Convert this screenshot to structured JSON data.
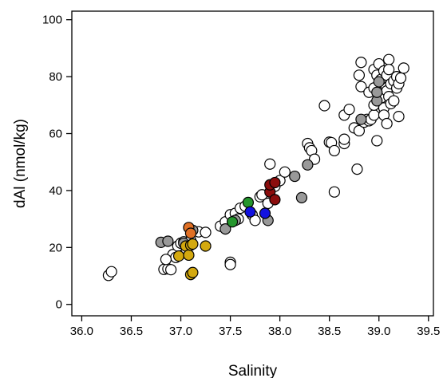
{
  "chart_data": {
    "type": "scatter",
    "title": "",
    "xlabel": "Salinity",
    "ylabel": "dAl (nmol/kg)",
    "xlim": [
      35.9,
      39.55
    ],
    "ylim": [
      -4,
      103
    ],
    "xticks": [
      36.0,
      36.5,
      37.0,
      37.5,
      38.0,
      38.5,
      39.0,
      39.5
    ],
    "xtick_labels": [
      "36.0",
      "36.5",
      "37.0",
      "37.5",
      "38.0",
      "38.5",
      "39.0",
      "39.5"
    ],
    "yticks": [
      0,
      20,
      40,
      60,
      80,
      100
    ],
    "ytick_labels": [
      "0",
      "20",
      "40",
      "60",
      "80",
      "100"
    ],
    "grid": false,
    "legend": "none",
    "series": [
      {
        "color": "#ffffff",
        "points": [
          [
            36.27,
            10.2
          ],
          [
            36.3,
            11.5
          ],
          [
            36.83,
            12.3
          ],
          [
            36.87,
            12.5
          ],
          [
            36.9,
            12.2
          ],
          [
            36.92,
            17.5
          ],
          [
            36.95,
            16.5
          ],
          [
            36.85,
            15.8
          ],
          [
            36.97,
            20.5
          ],
          [
            37.0,
            21.5
          ],
          [
            37.03,
            22.0
          ],
          [
            37.05,
            18.0
          ],
          [
            37.1,
            22.5
          ],
          [
            37.18,
            25.5
          ],
          [
            37.25,
            25.3
          ],
          [
            37.5,
            14.8
          ],
          [
            37.5,
            14.0
          ],
          [
            37.4,
            27.5
          ],
          [
            37.45,
            29.0
          ],
          [
            37.5,
            31.5
          ],
          [
            37.55,
            32.0
          ],
          [
            37.6,
            33.8
          ],
          [
            37.58,
            30.0
          ],
          [
            37.65,
            34.5
          ],
          [
            37.72,
            31.5
          ],
          [
            37.75,
            29.5
          ],
          [
            37.8,
            37.8
          ],
          [
            37.82,
            38.5
          ],
          [
            37.88,
            35.5
          ],
          [
            37.9,
            49.3
          ],
          [
            37.95,
            41.5
          ],
          [
            38.0,
            43.5
          ],
          [
            38.05,
            46.5
          ],
          [
            38.28,
            56.5
          ],
          [
            38.3,
            55.0
          ],
          [
            38.32,
            54.0
          ],
          [
            38.35,
            51.0
          ],
          [
            38.45,
            69.8
          ],
          [
            38.5,
            57.0
          ],
          [
            38.52,
            56.8
          ],
          [
            38.55,
            54.0
          ],
          [
            38.55,
            39.5
          ],
          [
            38.65,
            56.5
          ],
          [
            38.65,
            58.0
          ],
          [
            38.65,
            66.5
          ],
          [
            38.7,
            68.5
          ],
          [
            38.75,
            62.0
          ],
          [
            38.78,
            47.5
          ],
          [
            38.8,
            61.0
          ],
          [
            38.8,
            80.5
          ],
          [
            38.82,
            85.0
          ],
          [
            38.82,
            76.5
          ],
          [
            38.85,
            64.0
          ],
          [
            38.88,
            65.0
          ],
          [
            38.9,
            64.5
          ],
          [
            38.9,
            74.5
          ],
          [
            38.92,
            65.0
          ],
          [
            38.95,
            66.5
          ],
          [
            38.95,
            70.0
          ],
          [
            38.95,
            76.0
          ],
          [
            38.95,
            82.5
          ],
          [
            38.98,
            80.5
          ],
          [
            38.98,
            57.5
          ],
          [
            39.0,
            84.5
          ],
          [
            39.0,
            74.5
          ],
          [
            39.02,
            72.5
          ],
          [
            39.02,
            79.0
          ],
          [
            39.05,
            69.0
          ],
          [
            39.05,
            82.0
          ],
          [
            39.05,
            66.5
          ],
          [
            39.08,
            63.5
          ],
          [
            39.08,
            75.0
          ],
          [
            39.08,
            80.5
          ],
          [
            39.1,
            86.0
          ],
          [
            39.1,
            82.5
          ],
          [
            39.1,
            73.0
          ],
          [
            39.12,
            70.5
          ],
          [
            39.12,
            77.5
          ],
          [
            39.15,
            78.5
          ],
          [
            39.15,
            71.5
          ],
          [
            39.18,
            76.0
          ],
          [
            39.18,
            80.0
          ],
          [
            39.2,
            77.5
          ],
          [
            39.2,
            66.0
          ],
          [
            39.22,
            79.5
          ],
          [
            39.25,
            83.0
          ]
        ]
      },
      {
        "color": "#999999",
        "points": [
          [
            36.8,
            21.8
          ],
          [
            36.87,
            22.2
          ],
          [
            37.03,
            21.5
          ],
          [
            37.12,
            26.0
          ],
          [
            37.45,
            26.5
          ],
          [
            37.55,
            29.5
          ],
          [
            37.88,
            29.5
          ],
          [
            38.15,
            45.0
          ],
          [
            38.22,
            37.5
          ],
          [
            38.28,
            49.0
          ],
          [
            38.82,
            65.0
          ],
          [
            38.98,
            71.5
          ],
          [
            38.98,
            74.5
          ],
          [
            39.0,
            78.2
          ]
        ]
      },
      {
        "color": "#d4a90f",
        "points": [
          [
            36.98,
            17.0
          ],
          [
            37.05,
            20.5
          ],
          [
            37.08,
            17.3
          ],
          [
            37.1,
            10.5
          ],
          [
            37.12,
            11.2
          ],
          [
            37.1,
            20.8
          ],
          [
            37.12,
            21.2
          ],
          [
            37.25,
            20.5
          ]
        ]
      },
      {
        "color": "#e07025",
        "points": [
          [
            37.08,
            27.0
          ],
          [
            37.1,
            25.0
          ]
        ]
      },
      {
        "color": "#25962d",
        "points": [
          [
            37.52,
            29.0
          ],
          [
            37.68,
            35.8
          ]
        ]
      },
      {
        "color": "#1212e0",
        "points": [
          [
            37.7,
            32.5
          ],
          [
            37.85,
            32.0
          ]
        ]
      },
      {
        "color": "#8b0d0d",
        "points": [
          [
            37.9,
            39.5
          ],
          [
            37.9,
            42.0
          ],
          [
            37.95,
            42.8
          ],
          [
            37.95,
            36.8
          ]
        ]
      }
    ]
  }
}
